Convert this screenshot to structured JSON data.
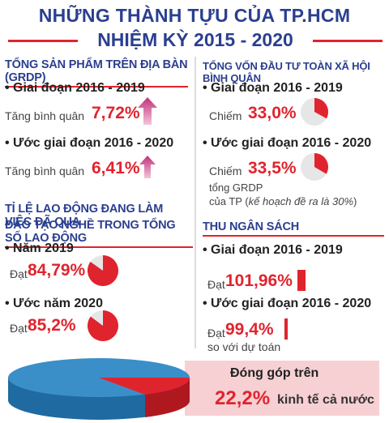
{
  "title": {
    "line1": "NHỮNG THÀNH TỰU CỦA TP.HCM",
    "line2": "NHIỆM KỲ 2015 - 2020"
  },
  "grdp": {
    "heading": "TỔNG SẢN PHẨM TRÊN ĐỊA BÀN (GRDP)",
    "p1": {
      "period": "• Giai đoạn 2016 - 2019",
      "label": "Tăng bình quân",
      "value": "7,72%"
    },
    "p2": {
      "period": "• Ước giai đoạn 2016 - 2020",
      "label": "Tăng bình quân",
      "value": "6,41%"
    }
  },
  "investment": {
    "heading": "TỔNG VỐN ĐẦU TƯ TOÀN XÃ HỘI BÌNH QUÂN",
    "p1": {
      "period": "• Giai đoạn 2016 - 2019",
      "label": "Chiếm",
      "value": "33,0%",
      "fraction": 0.33
    },
    "p2": {
      "period": "• Ước giai đoạn 2016 - 2020",
      "label": "Chiếm",
      "value": "33,5%",
      "fraction": 0.335,
      "note1": "tổng GRDP",
      "note2_prefix": "của TP (",
      "note2_italic": "kế hoạch đề ra là 30%",
      "note2_suffix": ")"
    }
  },
  "labor": {
    "heading1": "TỈ LỆ LAO ĐỘNG ĐANG LÀM VIỆC ĐÃ QUA",
    "heading2": "ĐÀO TẠO NGHỀ TRONG TỔNG SỐ LAO ĐỘNG",
    "p1": {
      "period": "• Năm 2019",
      "label": "Đạt",
      "value": "84,79%",
      "fraction": 0.8479
    },
    "p2": {
      "period": "• Ước năm 2020",
      "label": "Đạt",
      "value": "85,2%",
      "fraction": 0.852
    }
  },
  "budget": {
    "heading": "THU NGÂN SÁCH",
    "p1": {
      "period": "• Giai đoạn 2016 - 2019",
      "label": "Đạt",
      "value": "101,96%"
    },
    "p2": {
      "period": "• Ước giai đoạn 2016 - 2020",
      "label": "Đạt",
      "value": "99,4%",
      "note": "so với dự toán"
    }
  },
  "contribution": {
    "label": "Đóng góp trên",
    "value": "22,2%",
    "suffix": "kinh tế cả nước",
    "fraction": 0.222
  },
  "colors": {
    "accent_red": "#e0242e",
    "title_blue": "#2b3f8f",
    "pie_blue": "#3a8fc9",
    "pink": "#f7d0d3"
  }
}
